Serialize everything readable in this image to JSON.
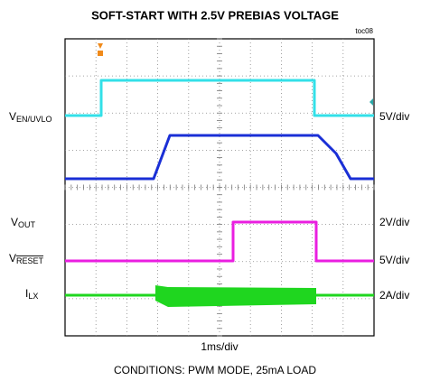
{
  "title": "SOFT-START WITH 2.5V PREBIAS VOLTAGE",
  "code": "toc08",
  "channels": [
    {
      "main": "V",
      "sub": "EN/UVLO",
      "scale": "5V/div"
    },
    {
      "main": "V",
      "sub": "OUT",
      "scale": "2V/div"
    },
    {
      "main": "V",
      "sub": "RESET",
      "scale": "5V/div"
    },
    {
      "main": "I",
      "sub": "LX",
      "scale": "2A/div"
    }
  ],
  "time_scale": "1ms/div",
  "conditions": "CONDITIONS: PWM MODE, 25mA LOAD"
}
